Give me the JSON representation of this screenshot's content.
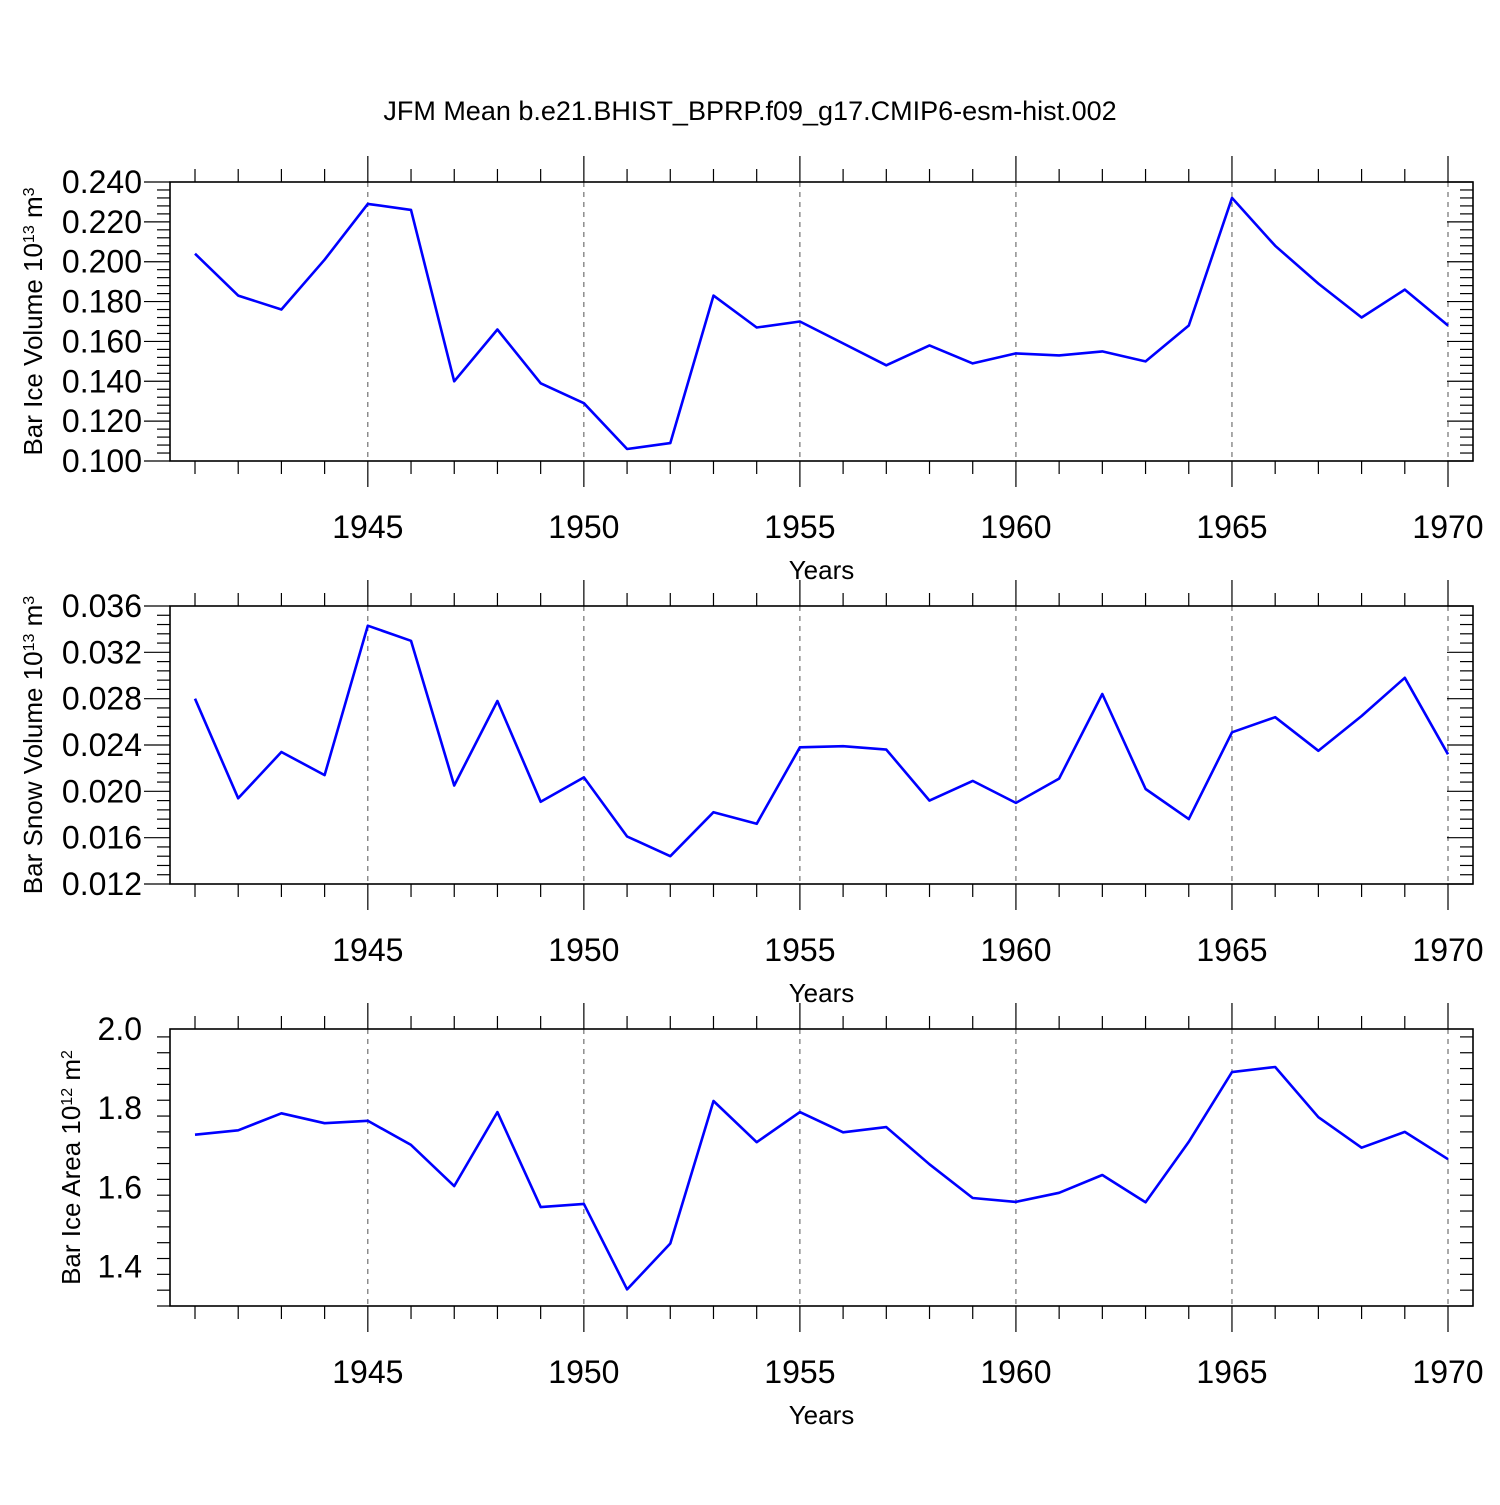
{
  "title": "JFM Mean b.e21.BHIST_BPRP.f09_g17.CMIP6-esm-hist.002",
  "colors": {
    "series": "#0000ff",
    "axis": "#000000",
    "grid": "#555555"
  },
  "chart_data": [
    {
      "type": "line",
      "name": "ice-volume",
      "ylabel_main": "Bar Ice Volume 10",
      "ylabel_exp": "13",
      "ylabel_unit": " m",
      "ylabel_unit_exp": "3",
      "xlabel": "Years",
      "xlim": [
        1941,
        1970
      ],
      "ylim": [
        0.1,
        0.24
      ],
      "yticks": [
        0.1,
        0.12,
        0.14,
        0.16,
        0.18,
        0.2,
        0.22,
        0.24
      ],
      "ytick_labels": [
        "0.100",
        "0.120",
        "0.140",
        "0.160",
        "0.180",
        "0.200",
        "0.220",
        "0.240"
      ],
      "xticks": [
        1945,
        1950,
        1955,
        1960,
        1965,
        1970
      ],
      "xtick_labels": [
        "1945",
        "1950",
        "1955",
        "1960",
        "1965",
        "1970"
      ],
      "x": [
        1941,
        1942,
        1943,
        1944,
        1945,
        1946,
        1947,
        1948,
        1949,
        1950,
        1951,
        1952,
        1953,
        1954,
        1955,
        1956,
        1957,
        1958,
        1959,
        1960,
        1961,
        1962,
        1963,
        1964,
        1965,
        1966,
        1967,
        1968,
        1969,
        1970
      ],
      "values": [
        0.204,
        0.183,
        0.176,
        0.201,
        0.229,
        0.226,
        0.14,
        0.166,
        0.139,
        0.129,
        0.106,
        0.109,
        0.183,
        0.167,
        0.17,
        0.159,
        0.148,
        0.158,
        0.149,
        0.154,
        0.153,
        0.155,
        0.15,
        0.168,
        0.232,
        0.208,
        0.189,
        0.172,
        0.186,
        0.168
      ]
    },
    {
      "type": "line",
      "name": "snow-volume",
      "ylabel_main": "Bar Snow Volume 10",
      "ylabel_exp": "13",
      "ylabel_unit": " m",
      "ylabel_unit_exp": "3",
      "xlabel": "Years",
      "xlim": [
        1941,
        1970
      ],
      "ylim": [
        0.012,
        0.036
      ],
      "yticks": [
        0.012,
        0.016,
        0.02,
        0.024,
        0.028,
        0.032,
        0.036
      ],
      "ytick_labels": [
        "0.012",
        "0.016",
        "0.020",
        "0.024",
        "0.028",
        "0.032",
        "0.036"
      ],
      "xticks": [
        1945,
        1950,
        1955,
        1960,
        1965,
        1970
      ],
      "xtick_labels": [
        "1945",
        "1950",
        "1955",
        "1960",
        "1965",
        "1970"
      ],
      "x": [
        1941,
        1942,
        1943,
        1944,
        1945,
        1946,
        1947,
        1948,
        1949,
        1950,
        1951,
        1952,
        1953,
        1954,
        1955,
        1956,
        1957,
        1958,
        1959,
        1960,
        1961,
        1962,
        1963,
        1964,
        1965,
        1966,
        1967,
        1968,
        1969,
        1970
      ],
      "values": [
        0.028,
        0.0194,
        0.0234,
        0.0214,
        0.0343,
        0.033,
        0.0205,
        0.0278,
        0.0191,
        0.0212,
        0.0161,
        0.0144,
        0.0182,
        0.0172,
        0.0238,
        0.0239,
        0.0236,
        0.0192,
        0.0209,
        0.019,
        0.0211,
        0.0284,
        0.0202,
        0.0176,
        0.0251,
        0.0264,
        0.0235,
        0.0265,
        0.0298,
        0.0232
      ]
    },
    {
      "type": "line",
      "name": "ice-area",
      "ylabel_main": "Bar Ice Area 10",
      "ylabel_exp": "12",
      "ylabel_unit": " m",
      "ylabel_unit_exp": "2",
      "xlabel": "Years",
      "xlim": [
        1941,
        1970
      ],
      "ylim": [
        1.3,
        2.0
      ],
      "yticks": [
        1.4,
        1.6,
        1.8,
        2.0
      ],
      "ytick_labels": [
        "1.4",
        "1.6",
        "1.8",
        "2.0"
      ],
      "xticks": [
        1945,
        1950,
        1955,
        1960,
        1965,
        1970
      ],
      "xtick_labels": [
        "1945",
        "1950",
        "1955",
        "1960",
        "1965",
        "1970"
      ],
      "x": [
        1941,
        1942,
        1943,
        1944,
        1945,
        1946,
        1947,
        1948,
        1949,
        1950,
        1951,
        1952,
        1953,
        1954,
        1955,
        1956,
        1957,
        1958,
        1959,
        1960,
        1961,
        1962,
        1963,
        1964,
        1965,
        1966,
        1967,
        1968,
        1969,
        1970
      ],
      "values": [
        1.733,
        1.744,
        1.787,
        1.762,
        1.768,
        1.707,
        1.603,
        1.79,
        1.55,
        1.558,
        1.342,
        1.458,
        1.818,
        1.714,
        1.79,
        1.739,
        1.752,
        1.658,
        1.573,
        1.563,
        1.586,
        1.631,
        1.562,
        1.715,
        1.891,
        1.904,
        1.777,
        1.7,
        1.74,
        1.671
      ]
    }
  ]
}
